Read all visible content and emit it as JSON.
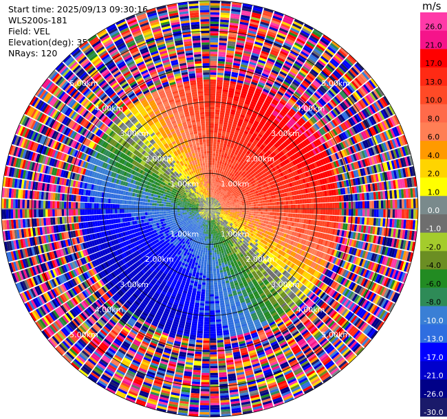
{
  "header": {
    "start_time": "Start time: 2025/09/13 09:30:16",
    "instrument": "WLS200s-181",
    "field": "Field: VEL",
    "elevation": "Elevation(deg): 35.00",
    "nrays": "NRays: 120"
  },
  "chart_data": {
    "type": "heatmap",
    "projection": "polar-ppi",
    "field": "VEL",
    "units": "m/s",
    "n_rays": 120,
    "range_rings_km": [
      1,
      2,
      3,
      4,
      5
    ],
    "ring_labels": [
      "1.00km",
      "2.00km",
      "3.00km",
      "4.00km",
      "5.00km"
    ],
    "max_range_km": 5.85,
    "valid_data_range_km": 3.6,
    "wind_pattern": {
      "toward_sensor_sector_deg": [
        215,
        235
      ],
      "away_from_sensor_sector_deg": [
        35,
        55
      ],
      "peak_speed_ms": 21
    },
    "colorbar": {
      "unit_label": "m/s",
      "tick_labels": [
        "26.0",
        "21.0",
        "17.0",
        "13.0",
        "10.0",
        "8.0",
        "6.0",
        "4.0",
        "2.0",
        "1.0",
        "0.0",
        "-1.0",
        "-2.0",
        "-4.0",
        "-6.0",
        "-8.0",
        "-10.0",
        "-13.0",
        "-17.0",
        "-21.0",
        "-26.0",
        "-30.0"
      ],
      "bins": [
        {
          "min": 26,
          "max": 30,
          "color": "#ff3aa8"
        },
        {
          "min": 21,
          "max": 26,
          "color": "#f5148a"
        },
        {
          "min": 17,
          "max": 21,
          "color": "#ff0000"
        },
        {
          "min": 13,
          "max": 17,
          "color": "#ff2a14"
        },
        {
          "min": 10,
          "max": 13,
          "color": "#ff4a26"
        },
        {
          "min": 8,
          "max": 10,
          "color": "#ff6a4a"
        },
        {
          "min": 6,
          "max": 8,
          "color": "#ff7f55"
        },
        {
          "min": 4,
          "max": 6,
          "color": "#ff9a00"
        },
        {
          "min": 2,
          "max": 4,
          "color": "#ffd400"
        },
        {
          "min": 1,
          "max": 2,
          "color": "#ffff00"
        },
        {
          "min": 0,
          "max": 1,
          "color": "#7a8a8c"
        },
        {
          "min": -1,
          "max": 0,
          "color": "#6e6e6e"
        },
        {
          "min": -2,
          "max": -1,
          "color": "#a4cc2c"
        },
        {
          "min": -4,
          "max": -2,
          "color": "#6b8e23"
        },
        {
          "min": -6,
          "max": -4,
          "color": "#228b22"
        },
        {
          "min": -8,
          "max": -6,
          "color": "#2e8b57"
        },
        {
          "min": -10,
          "max": -8,
          "color": "#3a7fd5"
        },
        {
          "min": -13,
          "max": -10,
          "color": "#2f6ee0"
        },
        {
          "min": -17,
          "max": -13,
          "color": "#0000ff"
        },
        {
          "min": -21,
          "max": -17,
          "color": "#0000cc"
        },
        {
          "min": -26,
          "max": -21,
          "color": "#000088"
        },
        {
          "min": -30,
          "max": -26,
          "color": "#1a1a6a"
        }
      ]
    }
  }
}
